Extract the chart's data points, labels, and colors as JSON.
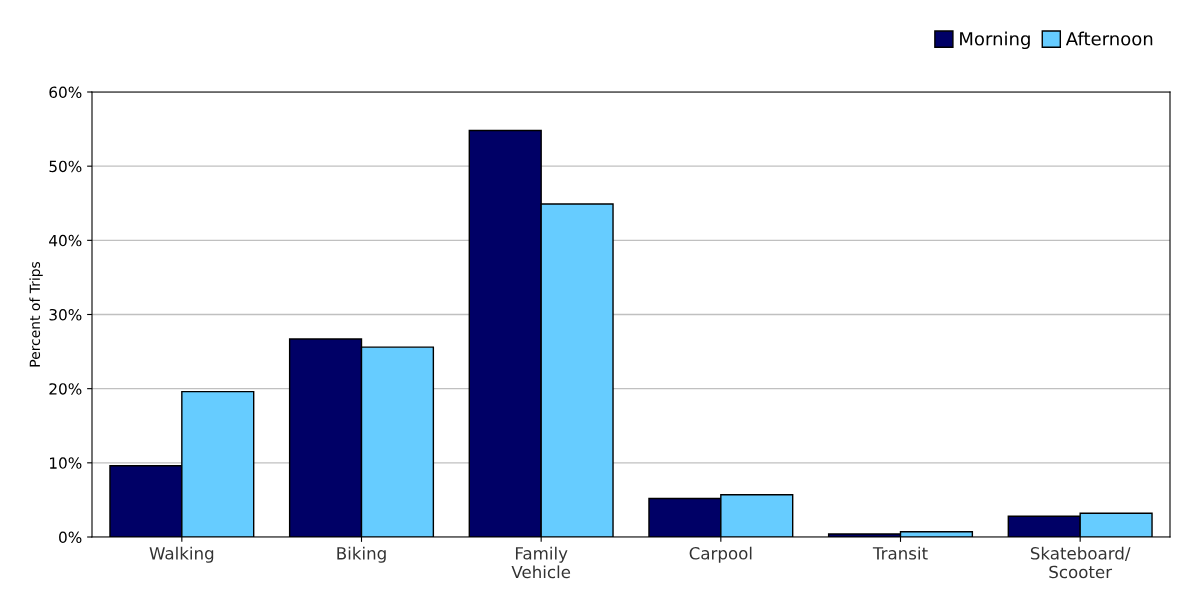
{
  "chart_data": {
    "type": "bar",
    "ylabel": "Percent of Trips",
    "categories": [
      "Walking",
      "Biking",
      "Family\nVehicle",
      "Carpool",
      "Transit",
      "Skateboard/\nScooter"
    ],
    "series": [
      {
        "name": "Morning",
        "color": "#000066",
        "values": [
          9.6,
          26.7,
          54.8,
          5.2,
          0.4,
          2.8
        ]
      },
      {
        "name": "Afternoon",
        "color": "#66ccff",
        "values": [
          19.6,
          25.6,
          44.9,
          5.7,
          0.7,
          3.2
        ]
      }
    ],
    "ylim": [
      0,
      60
    ],
    "yticks": [
      {
        "value": 0,
        "label": "0%"
      },
      {
        "value": 10,
        "label": "10%"
      },
      {
        "value": 20,
        "label": "20%"
      },
      {
        "value": 30,
        "label": "30%"
      },
      {
        "value": 40,
        "label": "40%"
      },
      {
        "value": 50,
        "label": "50%"
      },
      {
        "value": 60,
        "label": "60%"
      }
    ],
    "grid": "y",
    "legend": "top right"
  }
}
